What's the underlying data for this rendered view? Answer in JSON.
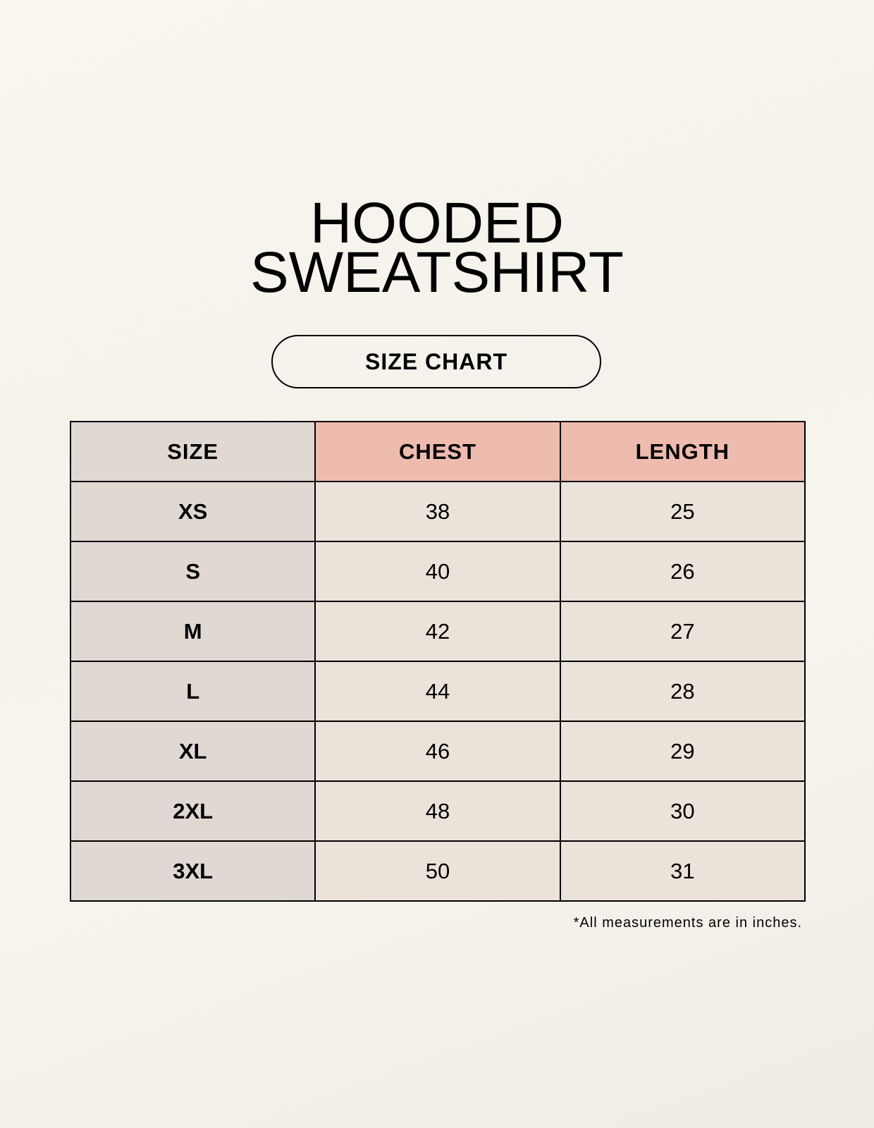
{
  "title": {
    "line1": "HOODED",
    "line2": "SWEATSHIRT"
  },
  "badge": "SIZE CHART",
  "table": {
    "headers": [
      "SIZE",
      "CHEST",
      "LENGTH"
    ],
    "rows": [
      [
        "XS",
        "38",
        "25"
      ],
      [
        "S",
        "40",
        "26"
      ],
      [
        "M",
        "42",
        "27"
      ],
      [
        "L",
        "44",
        "28"
      ],
      [
        "XL",
        "46",
        "29"
      ],
      [
        "2XL",
        "48",
        "30"
      ],
      [
        "3XL",
        "50",
        "31"
      ]
    ]
  },
  "footnote": "*All measurements are in inches.",
  "colors": {
    "size_column": "#e0d8d3",
    "measurement_header": "#edbcaf",
    "measurement_cells": "#ebe3d9"
  }
}
